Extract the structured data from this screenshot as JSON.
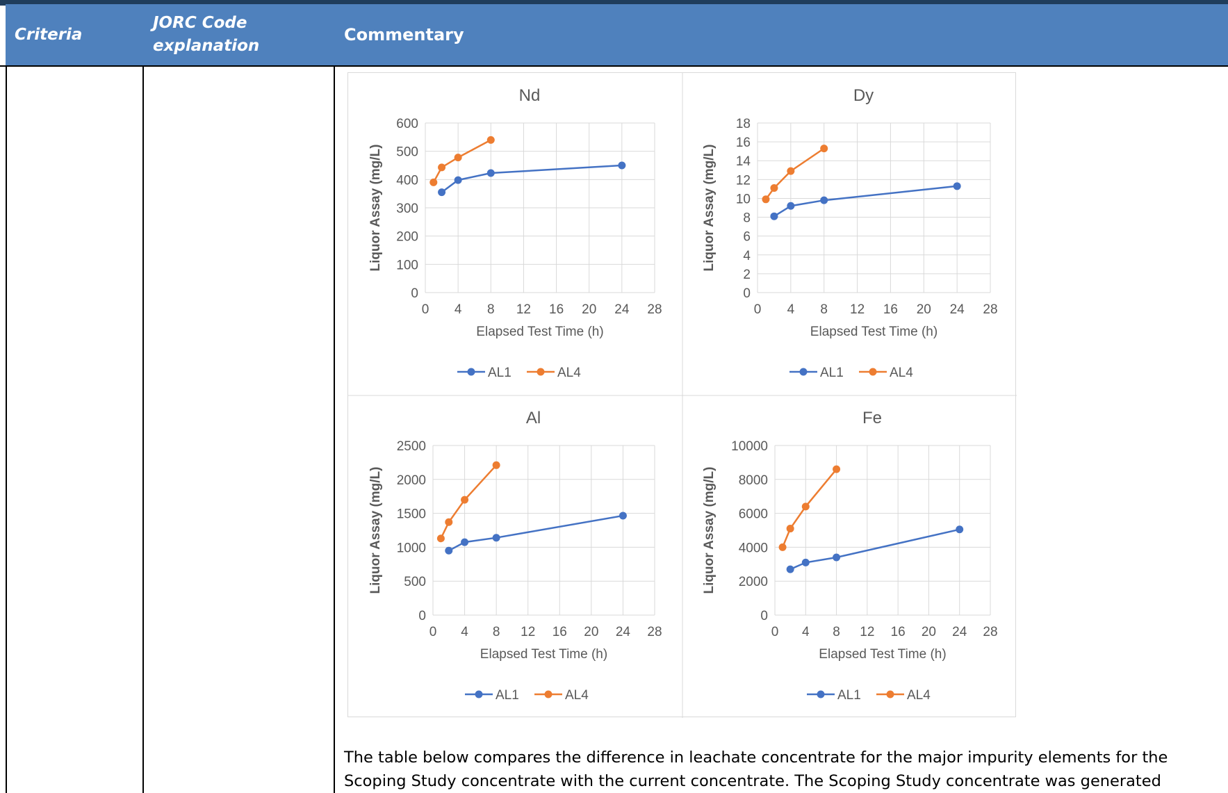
{
  "table": {
    "headers": {
      "criteria": "Criteria",
      "jorc_line1": "JORC Code",
      "jorc_line2": "explanation",
      "commentary": "Commentary"
    }
  },
  "colors": {
    "header_bg": "#4f81bd",
    "AL1": "#4472c4",
    "AL4": "#ed7d31"
  },
  "chart_data": [
    {
      "type": "line",
      "title": "Nd",
      "xlabel": "Elapsed Test Time (h)",
      "ylabel": "Liquor Assay (mg/L)",
      "xlim": [
        0,
        28
      ],
      "x_ticks": [
        0,
        4,
        8,
        12,
        16,
        20,
        24,
        28
      ],
      "ylim": [
        0,
        600
      ],
      "y_ticks": [
        0,
        100,
        200,
        300,
        400,
        500,
        600
      ],
      "grid": true,
      "legend": "bottom",
      "series": [
        {
          "name": "AL1",
          "x": [
            2,
            4,
            8,
            24
          ],
          "y": [
            355,
            398,
            423,
            450
          ]
        },
        {
          "name": "AL4",
          "x": [
            1,
            2,
            4,
            8
          ],
          "y": [
            390,
            443,
            478,
            540
          ]
        }
      ]
    },
    {
      "type": "line",
      "title": "Dy",
      "xlabel": "Elapsed Test Time (h)",
      "ylabel": "Liquor Assay (mg/L)",
      "xlim": [
        0,
        28
      ],
      "x_ticks": [
        0,
        4,
        8,
        12,
        16,
        20,
        24,
        28
      ],
      "ylim": [
        0,
        18
      ],
      "y_ticks": [
        0,
        2,
        4,
        6,
        8,
        10,
        12,
        14,
        16,
        18
      ],
      "grid": true,
      "legend": "bottom",
      "series": [
        {
          "name": "AL1",
          "x": [
            2,
            4,
            8,
            24
          ],
          "y": [
            8.1,
            9.2,
            9.8,
            11.3
          ]
        },
        {
          "name": "AL4",
          "x": [
            1,
            2,
            4,
            8
          ],
          "y": [
            9.9,
            11.1,
            12.9,
            15.3
          ]
        }
      ]
    },
    {
      "type": "line",
      "title": "Al",
      "xlabel": "Elapsed Test Time (h)",
      "ylabel": "Liquor Assay (mg/L)",
      "xlim": [
        0,
        28
      ],
      "x_ticks": [
        0,
        4,
        8,
        12,
        16,
        20,
        24,
        28
      ],
      "ylim": [
        0,
        2500
      ],
      "y_ticks": [
        0,
        500,
        1000,
        1500,
        2000,
        2500
      ],
      "grid": true,
      "legend": "bottom",
      "series": [
        {
          "name": "AL1",
          "x": [
            2,
            4,
            8,
            24
          ],
          "y": [
            950,
            1075,
            1140,
            1465
          ]
        },
        {
          "name": "AL4",
          "x": [
            1,
            2,
            4,
            8
          ],
          "y": [
            1130,
            1370,
            1700,
            2210
          ]
        }
      ]
    },
    {
      "type": "line",
      "title": "Fe",
      "xlabel": "Elapsed Test Time (h)",
      "ylabel": "Liquor Assay (mg/L)",
      "xlim": [
        0,
        28
      ],
      "x_ticks": [
        0,
        4,
        8,
        12,
        16,
        20,
        24,
        28
      ],
      "ylim": [
        0,
        10000
      ],
      "y_ticks": [
        0,
        2000,
        4000,
        6000,
        8000,
        10000
      ],
      "grid": true,
      "legend": "bottom",
      "series": [
        {
          "name": "AL1",
          "x": [
            2,
            4,
            8,
            24
          ],
          "y": [
            2700,
            3100,
            3400,
            5050
          ]
        },
        {
          "name": "AL4",
          "x": [
            1,
            2,
            4,
            8
          ],
          "y": [
            4000,
            5100,
            6400,
            8600
          ]
        }
      ]
    }
  ],
  "commentary": {
    "paragraph_line1": "The table below compares the difference in leachate concentrate for the major impurity elements for the",
    "paragraph_line2": "Scoping Study concentrate with the current concentrate.  The Scoping Study concentrate was generated"
  }
}
